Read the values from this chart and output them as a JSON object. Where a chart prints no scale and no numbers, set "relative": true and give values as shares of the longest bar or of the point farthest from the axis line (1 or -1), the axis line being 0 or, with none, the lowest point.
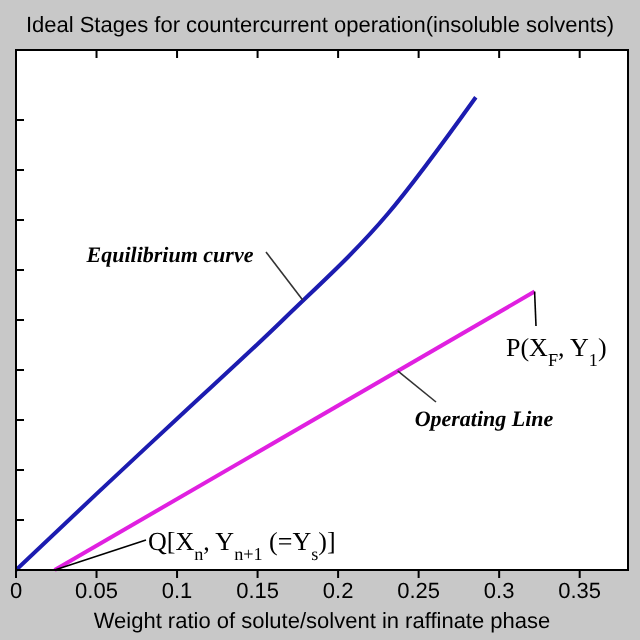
{
  "chart_data": {
    "type": "line",
    "title": "Ideal Stages for countercurrent operation(insoluble solvents)",
    "xlabel": "Weight ratio of solute/solvent in raffinate phase",
    "relative": true,
    "xlim": [
      0,
      0.38
    ],
    "xticks": [
      0,
      0.05,
      0.1,
      0.15,
      0.2,
      0.25,
      0.3,
      0.35
    ],
    "marker": "none",
    "line_style": "solid",
    "series": [
      {
        "name": "Equilibrium curve",
        "color": "#1c1cb0",
        "x": [
          0,
          0.05,
          0.1,
          0.166,
          0.231,
          0.2855
        ],
        "values": [
          0,
          0.161,
          0.32,
          0.53,
          0.754,
          1
        ]
      },
      {
        "name": "Operating Line",
        "color": "#e020e0",
        "x": [
          0.024,
          0.322
        ],
        "values": [
          0,
          0.589
        ]
      }
    ],
    "annotations": [
      {
        "text": "P(X$_{F}$, Y$_{1}$)",
        "x": 0.322,
        "y": 0.589
      },
      {
        "text": "Q[X$_{n}$, Y$_{n+1}$ (=Y$_{s}$)]",
        "x": 0.024,
        "y": 0
      }
    ]
  }
}
